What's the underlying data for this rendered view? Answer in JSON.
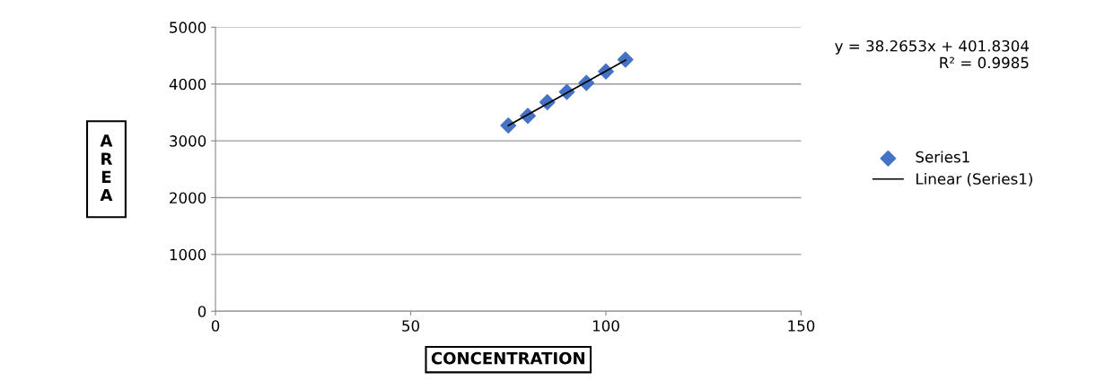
{
  "chart_data": {
    "type": "scatter",
    "xlabel": "CONCENTRATION",
    "ylabel": "AREA",
    "series": [
      {
        "name": "Series1",
        "color": "#4472c4",
        "marker": "diamond",
        "x": [
          75,
          80,
          85,
          90,
          95,
          100,
          105
        ],
        "values": [
          3270,
          3440,
          3680,
          3860,
          4020,
          4220,
          4430
        ]
      },
      {
        "name": "Linear (Series1)",
        "type": "line",
        "color": "#000000",
        "marker": "none",
        "line_style": "solid",
        "x": [
          75,
          105
        ],
        "values": [
          3270,
          4420
        ]
      }
    ],
    "annotations": [
      "y = 38.2653x + 401.8304\nR² = 0.9985"
    ],
    "xlim": [
      0,
      150
    ],
    "xticks": [
      0,
      50,
      100,
      150
    ],
    "ylim": [
      0,
      5000
    ],
    "yticks": [
      0,
      1000,
      2000,
      3000,
      4000,
      5000
    ],
    "grid": "y",
    "legend": "right"
  }
}
